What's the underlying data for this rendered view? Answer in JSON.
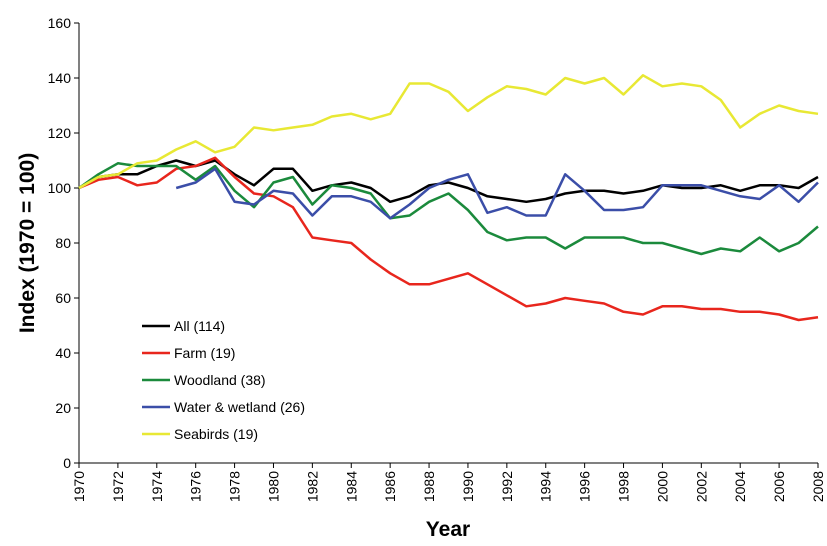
{
  "chart_data": {
    "type": "line",
    "x_label": "Year",
    "y_label": "Index (1970 = 100)",
    "x": [
      1970,
      1971,
      1972,
      1973,
      1974,
      1975,
      1976,
      1977,
      1978,
      1979,
      1980,
      1981,
      1982,
      1983,
      1984,
      1985,
      1986,
      1987,
      1988,
      1989,
      1990,
      1991,
      1992,
      1993,
      1994,
      1995,
      1996,
      1997,
      1998,
      1999,
      2000,
      2001,
      2002,
      2003,
      2004,
      2005,
      2006,
      2007,
      2008
    ],
    "xlim": [
      1970,
      2008
    ],
    "xticks": [
      1970,
      1972,
      1974,
      1976,
      1978,
      1980,
      1982,
      1984,
      1986,
      1988,
      1990,
      1992,
      1994,
      1996,
      1998,
      2000,
      2002,
      2004,
      2006,
      2008
    ],
    "ylim": [
      0,
      160
    ],
    "yticks": [
      0,
      20,
      40,
      60,
      80,
      100,
      120,
      140,
      160
    ],
    "legend": "lower-left",
    "series": [
      {
        "name": "All (114)",
        "color": "#000000",
        "values": [
          100,
          104,
          105,
          105,
          108,
          110,
          108,
          110,
          105,
          101,
          107,
          107,
          99,
          101,
          102,
          100,
          95,
          97,
          101,
          102,
          100,
          97,
          96,
          95,
          96,
          98,
          99,
          99,
          98,
          99,
          101,
          100,
          100,
          101,
          99,
          101,
          101,
          100,
          104
        ]
      },
      {
        "name": "Farm (19)",
        "color": "#e8261d",
        "values": [
          100,
          103,
          104,
          101,
          102,
          107,
          108,
          111,
          104,
          98,
          97,
          93,
          82,
          81,
          80,
          74,
          69,
          65,
          65,
          67,
          69,
          65,
          61,
          57,
          58,
          60,
          59,
          58,
          55,
          54,
          57,
          57,
          56,
          56,
          55,
          55,
          54,
          52,
          53
        ]
      },
      {
        "name": "Woodland (38)",
        "color": "#1b8a3c",
        "values": [
          100,
          105,
          109,
          108,
          108,
          108,
          103,
          108,
          99,
          93,
          102,
          104,
          94,
          101,
          100,
          98,
          89,
          90,
          95,
          98,
          92,
          84,
          81,
          82,
          82,
          78,
          82,
          82,
          82,
          80,
          80,
          78,
          76,
          78,
          77,
          82,
          77,
          80,
          86
        ]
      },
      {
        "name": "Water & wetland (26)",
        "color": "#3b4ea8",
        "values": [
          null,
          null,
          null,
          null,
          null,
          100,
          102,
          107,
          95,
          94,
          99,
          98,
          90,
          97,
          97,
          95,
          89,
          94,
          100,
          103,
          105,
          91,
          93,
          90,
          90,
          105,
          99,
          92,
          92,
          93,
          101,
          101,
          101,
          99,
          97,
          96,
          101,
          95,
          102
        ]
      },
      {
        "name": "Seabirds (19)",
        "color": "#e8e834",
        "values": [
          100,
          104,
          105,
          109,
          110,
          114,
          117,
          113,
          115,
          122,
          121,
          122,
          123,
          126,
          127,
          125,
          127,
          138,
          138,
          135,
          128,
          133,
          137,
          136,
          134,
          140,
          138,
          140,
          134,
          141,
          137,
          138,
          137,
          132,
          122,
          127,
          130,
          128,
          127
        ]
      }
    ]
  }
}
